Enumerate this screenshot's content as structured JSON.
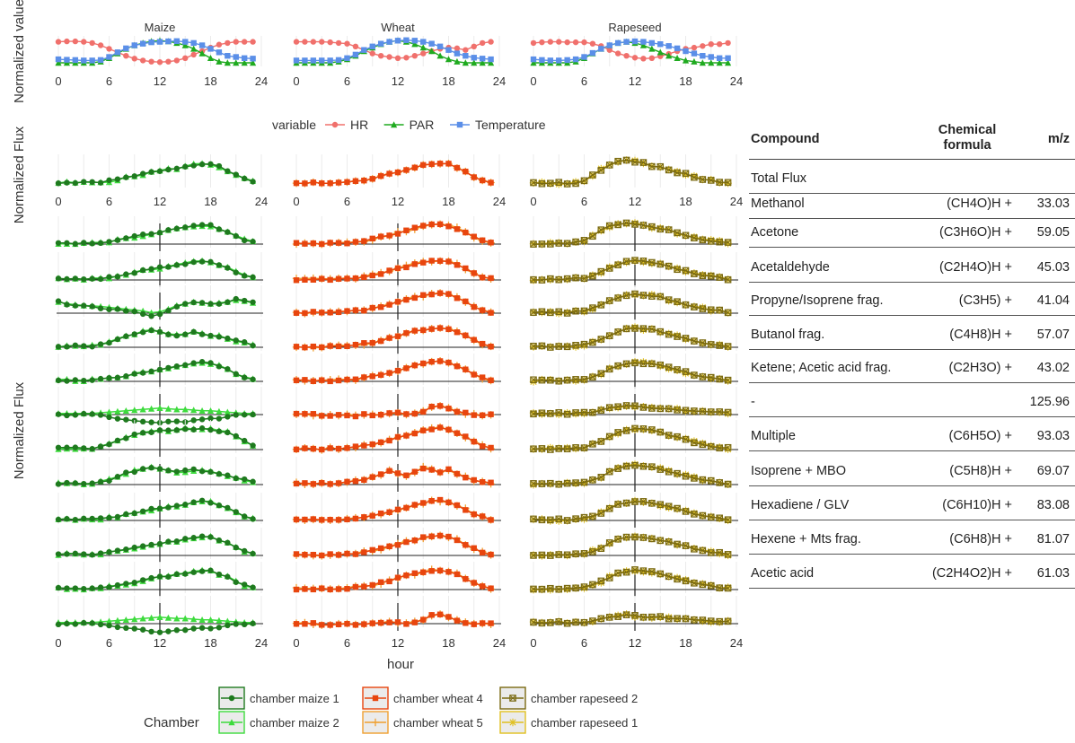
{
  "chart_data": {
    "type": "line",
    "x_label": "hour",
    "x_ticks": [
      0,
      6,
      12,
      18,
      24
    ],
    "x_range": [
      0,
      24
    ],
    "top_row": {
      "y_label": "Normalized value",
      "legend_title": "variable",
      "variables": [
        {
          "name": "HR",
          "color": "#F0706C"
        },
        {
          "name": "PAR",
          "color": "#1FAA1F"
        },
        {
          "name": "Temperature",
          "color": "#5B8FE8"
        }
      ],
      "panels": [
        {
          "title": "Maize",
          "HR": [
            0.9,
            0.92,
            0.92,
            0.9,
            0.85,
            0.75,
            0.6,
            0.45,
            0.3,
            0.18,
            0.1,
            0.05,
            0.03,
            0.05,
            0.1,
            0.2,
            0.35,
            0.5,
            0.65,
            0.78,
            0.85,
            0.9,
            0.9,
            0.9
          ],
          "PAR": [
            0,
            0,
            0,
            0,
            0,
            0.05,
            0.2,
            0.4,
            0.6,
            0.75,
            0.85,
            0.92,
            0.95,
            0.92,
            0.85,
            0.75,
            0.6,
            0.4,
            0.2,
            0.05,
            0,
            0,
            0,
            0
          ],
          "Temperature": [
            0.15,
            0.13,
            0.12,
            0.1,
            0.1,
            0.12,
            0.25,
            0.45,
            0.62,
            0.75,
            0.82,
            0.88,
            0.9,
            0.92,
            0.93,
            0.9,
            0.85,
            0.75,
            0.6,
            0.45,
            0.3,
            0.25,
            0.2,
            0.18
          ]
        },
        {
          "title": "Wheat",
          "HR": [
            0.9,
            0.9,
            0.9,
            0.9,
            0.88,
            0.85,
            0.82,
            0.7,
            0.55,
            0.4,
            0.3,
            0.25,
            0.2,
            0.22,
            0.3,
            0.4,
            0.5,
            0.6,
            0.65,
            0.62,
            0.55,
            0.7,
            0.85,
            0.9
          ],
          "PAR": [
            0,
            0,
            0,
            0,
            0,
            0.05,
            0.15,
            0.3,
            0.5,
            0.65,
            0.8,
            0.9,
            0.95,
            0.9,
            0.8,
            0.65,
            0.5,
            0.3,
            0.15,
            0.05,
            0,
            0,
            0,
            0
          ],
          "Temperature": [
            0.1,
            0.1,
            0.1,
            0.1,
            0.1,
            0.12,
            0.2,
            0.35,
            0.55,
            0.7,
            0.82,
            0.9,
            0.95,
            0.97,
            0.95,
            0.9,
            0.82,
            0.7,
            0.55,
            0.4,
            0.3,
            0.22,
            0.18,
            0.15
          ]
        },
        {
          "title": "Rapeseed",
          "HR": [
            0.85,
            0.88,
            0.9,
            0.9,
            0.88,
            0.88,
            0.88,
            0.82,
            0.72,
            0.55,
            0.4,
            0.3,
            0.22,
            0.18,
            0.2,
            0.28,
            0.38,
            0.5,
            0.6,
            0.65,
            0.72,
            0.8,
            0.8,
            0.85
          ],
          "PAR": [
            0,
            0,
            0,
            0,
            0,
            0.05,
            0.2,
            0.4,
            0.6,
            0.75,
            0.85,
            0.9,
            0.85,
            0.75,
            0.6,
            0.45,
            0.3,
            0.2,
            0.1,
            0.05,
            0,
            0,
            0,
            0
          ],
          "Temperature": [
            0.15,
            0.12,
            0.1,
            0.1,
            0.12,
            0.15,
            0.25,
            0.42,
            0.6,
            0.75,
            0.85,
            0.9,
            0.92,
            0.9,
            0.85,
            0.8,
            0.72,
            0.62,
            0.5,
            0.4,
            0.3,
            0.25,
            0.2,
            0.2
          ]
        }
      ]
    },
    "flux_rows": {
      "y_label_total": "Normalized Flux",
      "y_label_compounds": "Normalized Flux",
      "table_headers": {
        "compound": "Compound",
        "formula": "Chemical formula",
        "mz": "m/z"
      },
      "compounds": [
        {
          "name": "Total Flux",
          "formula": "",
          "mz": ""
        },
        {
          "name": "Methanol",
          "formula": "(CH4O)H +",
          "mz": "33.03"
        },
        {
          "name": "Acetone",
          "formula": "(C3H6O)H +",
          "mz": "59.05"
        },
        {
          "name": "Acetaldehyde",
          "formula": "(C2H4O)H +",
          "mz": "45.03"
        },
        {
          "name": "Propyne/Isoprene frag.",
          "formula": "(C3H5) +",
          "mz": "41.04"
        },
        {
          "name": "Butanol frag.",
          "formula": "(C4H8)H +",
          "mz": "57.07"
        },
        {
          "name": "Ketene; Acetic acid frag.",
          "formula": "(C2H3O) +",
          "mz": "43.02"
        },
        {
          "name": "-",
          "formula": "",
          "mz": "125.96"
        },
        {
          "name": "Multiple",
          "formula": "(C6H5O) +",
          "mz": "93.03"
        },
        {
          "name": "Isoprene + MBO",
          "formula": "(C5H8)H +",
          "mz": "69.07"
        },
        {
          "name": "Hexadiene / GLV",
          "formula": "(C6H10)H +",
          "mz": "83.08"
        },
        {
          "name": "Hexene + Mts frag.",
          "formula": "(C6H8)H +",
          "mz": "81.07"
        },
        {
          "name": "Acetic acid",
          "formula": "(C2H4O2)H +",
          "mz": "61.03"
        }
      ],
      "chambers": [
        {
          "name": "chamber maize 1",
          "color": "#1E7A1E",
          "marker": "circle"
        },
        {
          "name": "chamber maize 2",
          "color": "#3DDB3D",
          "marker": "triangle"
        },
        {
          "name": "chamber wheat 4",
          "color": "#E8450E",
          "marker": "square"
        },
        {
          "name": "chamber wheat 5",
          "color": "#F0A030",
          "marker": "plus"
        },
        {
          "name": "chamber rapeseed 2",
          "color": "#7A6A12",
          "marker": "boxcross"
        },
        {
          "name": "chamber rapeseed 1",
          "color": "#E0C020",
          "marker": "star"
        }
      ],
      "curves": {
        "maize_total": [
          0.05,
          0.05,
          0.05,
          0.05,
          0.06,
          0.08,
          0.12,
          0.18,
          0.25,
          0.32,
          0.4,
          0.48,
          0.55,
          0.6,
          0.65,
          0.72,
          0.8,
          0.85,
          0.82,
          0.7,
          0.55,
          0.35,
          0.2,
          0.1
        ],
        "maize_dip": [
          0.5,
          0.4,
          0.35,
          0.3,
          0.28,
          0.25,
          0.2,
          0.15,
          0.1,
          0.05,
          0.0,
          -0.1,
          -0.05,
          0.1,
          0.3,
          0.4,
          0.5,
          0.45,
          0.4,
          0.45,
          0.5,
          0.6,
          0.55,
          0.45
        ],
        "maize_ketene": [
          0.0,
          0.0,
          0.0,
          0.0,
          0.0,
          -0.05,
          -0.1,
          -0.15,
          -0.2,
          -0.25,
          -0.3,
          -0.35,
          -0.4,
          -0.35,
          -0.3,
          -0.3,
          -0.25,
          -0.2,
          -0.2,
          -0.15,
          -0.1,
          -0.05,
          0.0,
          0.0
        ],
        "maize_plateau": [
          0.05,
          0.05,
          0.05,
          0.05,
          0.06,
          0.1,
          0.2,
          0.35,
          0.5,
          0.62,
          0.7,
          0.75,
          0.78,
          0.8,
          0.83,
          0.85,
          0.85,
          0.85,
          0.83,
          0.78,
          0.7,
          0.55,
          0.35,
          0.15
        ],
        "maize_early": [
          0.05,
          0.05,
          0.05,
          0.05,
          0.06,
          0.1,
          0.2,
          0.35,
          0.5,
          0.6,
          0.7,
          0.75,
          0.7,
          0.6,
          0.55,
          0.6,
          0.65,
          0.6,
          0.55,
          0.5,
          0.4,
          0.3,
          0.2,
          0.1
        ],
        "wheat_total": [
          0.03,
          0.03,
          0.03,
          0.03,
          0.04,
          0.05,
          0.07,
          0.1,
          0.15,
          0.22,
          0.3,
          0.4,
          0.5,
          0.6,
          0.7,
          0.78,
          0.85,
          0.88,
          0.82,
          0.7,
          0.5,
          0.3,
          0.15,
          0.05
        ],
        "wheat_multiple": [
          0.05,
          0.05,
          0.05,
          0.05,
          0.06,
          0.08,
          0.1,
          0.15,
          0.2,
          0.3,
          0.45,
          0.6,
          0.5,
          0.4,
          0.55,
          0.75,
          0.7,
          0.55,
          0.65,
          0.5,
          0.35,
          0.2,
          0.1,
          0.05
        ],
        "wheat_ketene": [
          0.0,
          0.0,
          0.0,
          -0.05,
          -0.05,
          0.0,
          0.0,
          -0.05,
          0.0,
          0.0,
          0.0,
          0.05,
          0.05,
          0.0,
          0.05,
          0.15,
          0.35,
          0.4,
          0.3,
          0.15,
          0.05,
          0.0,
          0.0,
          0.0
        ],
        "rape_total": [
          0.03,
          0.03,
          0.03,
          0.03,
          0.04,
          0.06,
          0.15,
          0.35,
          0.6,
          0.8,
          0.9,
          0.95,
          0.92,
          0.85,
          0.75,
          0.7,
          0.6,
          0.5,
          0.4,
          0.3,
          0.22,
          0.15,
          0.1,
          0.05
        ],
        "rape_late": [
          0.03,
          0.03,
          0.03,
          0.03,
          0.04,
          0.06,
          0.1,
          0.2,
          0.35,
          0.55,
          0.7,
          0.8,
          0.85,
          0.82,
          0.78,
          0.7,
          0.6,
          0.5,
          0.4,
          0.3,
          0.22,
          0.15,
          0.1,
          0.05
        ],
        "rape_flat": [
          0.05,
          0.05,
          0.05,
          0.05,
          0.05,
          0.06,
          0.08,
          0.12,
          0.2,
          0.28,
          0.35,
          0.38,
          0.35,
          0.32,
          0.3,
          0.28,
          0.25,
          0.22,
          0.2,
          0.18,
          0.15,
          0.12,
          0.1,
          0.08
        ]
      },
      "legend_title": "Chamber"
    }
  }
}
